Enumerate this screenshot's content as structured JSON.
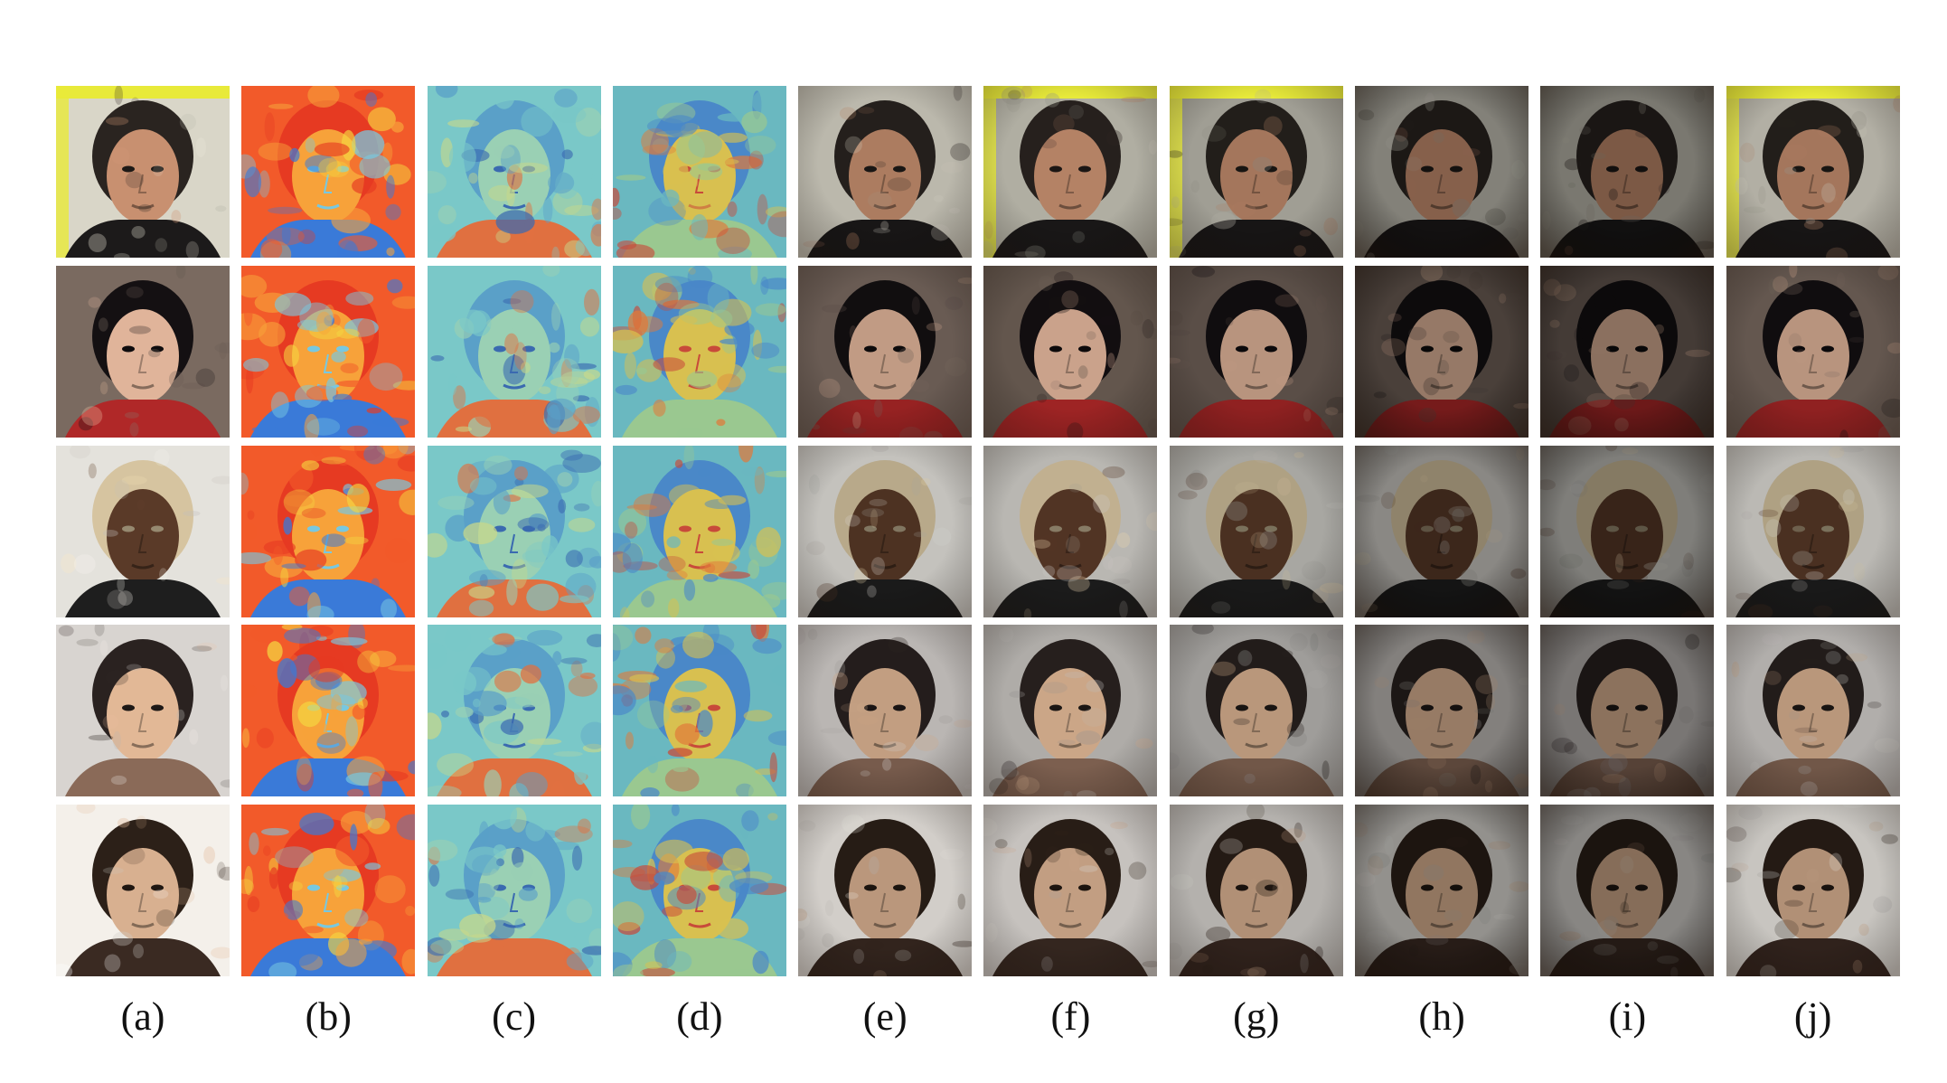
{
  "figure": {
    "columns": [
      {
        "label": "(a)",
        "style": "photo"
      },
      {
        "label": "(b)",
        "style": "heatmap-warm"
      },
      {
        "label": "(c)",
        "style": "heatmap-cool"
      },
      {
        "label": "(d)",
        "style": "heatmap-mixed"
      },
      {
        "label": "(e)",
        "style": "painting"
      },
      {
        "label": "(f)",
        "style": "painting"
      },
      {
        "label": "(g)",
        "style": "painting"
      },
      {
        "label": "(h)",
        "style": "painting-dark"
      },
      {
        "label": "(i)",
        "style": "painting-dark"
      },
      {
        "label": "(j)",
        "style": "painting"
      }
    ],
    "rows": [
      {
        "subject": "man-dark-hair-yellow-bg",
        "bg": "#d9d6c8",
        "frame": "#e8ea3a",
        "skin": "#c89070",
        "hair": "#2a2420",
        "cloth": "#1c1a1a"
      },
      {
        "subject": "woman-dark-hair-red-top",
        "bg": "#7a6a60",
        "frame": "#8a7a70",
        "skin": "#e0b49a",
        "hair": "#141012",
        "cloth": "#b02828"
      },
      {
        "subject": "man-hoodie",
        "bg": "#e4e2dc",
        "frame": "#ece8e0",
        "skin": "#5a3a28",
        "hair": "#d6c4a0",
        "cloth": "#1e1e1e"
      },
      {
        "subject": "woman-hands-on-head",
        "bg": "#d8d4d0",
        "frame": "#cfcac4",
        "skin": "#e2b896",
        "hair": "#2a2220",
        "cloth": "#8a6a58"
      },
      {
        "subject": "man-shaggy-hair",
        "bg": "#f4f0ea",
        "frame": "#f0ece4",
        "skin": "#d8b090",
        "hair": "#2c2018",
        "cloth": "#3a2a22"
      }
    ]
  }
}
